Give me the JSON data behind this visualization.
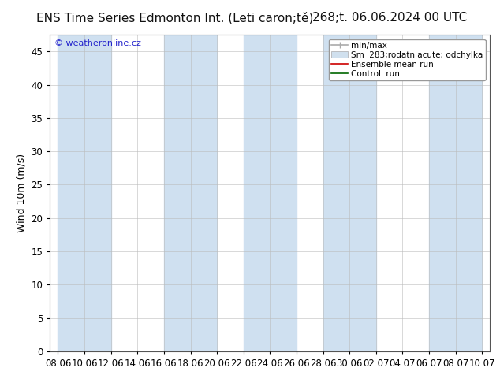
{
  "title_left": "ENS Time Series Edmonton Int. (Leti caron;tě)",
  "title_right": "268;t. 06.06.2024 00 UTC",
  "ylabel": "Wind 10m (m/s)",
  "watermark": "© weatheronline.cz",
  "ylim": [
    0,
    47.5
  ],
  "yticks": [
    0,
    5,
    10,
    15,
    20,
    25,
    30,
    35,
    40,
    45
  ],
  "xtick_labels": [
    "08.06",
    "10.06",
    "12.06",
    "14.06",
    "16.06",
    "18.06",
    "20.06",
    "22.06",
    "24.06",
    "26.06",
    "28.06",
    "30.06",
    "02.07",
    "04.07",
    "06.07",
    "08.07",
    "10.07"
  ],
  "band_color": "#cfe0f0",
  "plot_bg_color": "#ffffff",
  "fig_bg_color": "#ffffff",
  "border_color": "#555555",
  "grid_color": "#bbbbbb",
  "legend_entries": [
    "min/max",
    "Sm  283;rodatn acute; odchylka",
    "Ensemble mean run",
    "Controll run"
  ],
  "legend_line_color": "#aaaaaa",
  "legend_patch_color": "#d0e0ee",
  "legend_ensemble_color": "#cc0000",
  "legend_control_color": "#006600",
  "title_fontsize": 11,
  "tick_fontsize": 8.5,
  "ylabel_fontsize": 9,
  "watermark_color": "#2222cc",
  "watermark_fontsize": 8
}
